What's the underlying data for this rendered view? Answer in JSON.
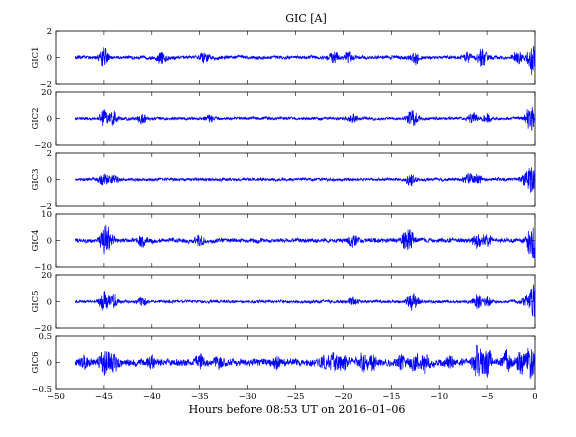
{
  "chart_data": {
    "type": "line",
    "title": "GIC [A]",
    "xlabel": "Hours before  08:53 UT on 2016–01–06",
    "xlim": [
      -50,
      0
    ],
    "xticks": [
      -50,
      -45,
      -40,
      -35,
      -30,
      -25,
      -20,
      -15,
      -10,
      -5,
      0
    ],
    "xtick_labels": [
      "−50",
      "−45",
      "−40",
      "−35",
      "−30",
      "−25",
      "−20",
      "−15",
      "−10",
      "−5",
      "0"
    ],
    "x_data_range": [
      -48,
      0
    ],
    "line_color": "#0000ff",
    "grid": false,
    "panels": [
      {
        "ylabel": "GIC1",
        "ylim": [
          -2,
          2
        ],
        "yticks": [
          -2,
          0,
          2
        ],
        "ytick_labels": [
          "−2",
          "0",
          "2"
        ],
        "noise_amplitude": 0.12,
        "bursts": [
          {
            "x": -45,
            "amp": 0.7
          },
          {
            "x": -39,
            "amp": 0.4
          },
          {
            "x": -34.5,
            "amp": 0.3
          },
          {
            "x": -21,
            "amp": 0.4
          },
          {
            "x": -19.5,
            "amp": 0.35
          },
          {
            "x": -12.5,
            "amp": 0.5
          },
          {
            "x": -7,
            "amp": 0.35
          },
          {
            "x": -5.5,
            "amp": 0.7
          },
          {
            "x": -1.8,
            "amp": 0.5
          },
          {
            "x": -0.3,
            "amp": 1.2
          }
        ]
      },
      {
        "ylabel": "GIC2",
        "ylim": [
          -20,
          20
        ],
        "yticks": [
          -20,
          0,
          20
        ],
        "ytick_labels": [
          "−20",
          "0",
          "20"
        ],
        "noise_amplitude": 1.0,
        "bursts": [
          {
            "x": -45,
            "amp": 6
          },
          {
            "x": -44,
            "amp": 5
          },
          {
            "x": -41,
            "amp": 3
          },
          {
            "x": -34,
            "amp": 2.5
          },
          {
            "x": -19,
            "amp": 3
          },
          {
            "x": -13,
            "amp": 4.5
          },
          {
            "x": -12.5,
            "amp": 3.5
          },
          {
            "x": -6.5,
            "amp": 4
          },
          {
            "x": -5,
            "amp": 3
          },
          {
            "x": -0.5,
            "amp": 10
          }
        ]
      },
      {
        "ylabel": "GIC3",
        "ylim": [
          -2,
          2
        ],
        "yticks": [
          -2,
          0,
          2
        ],
        "ytick_labels": [
          "−2",
          "0",
          "2"
        ],
        "noise_amplitude": 0.1,
        "bursts": [
          {
            "x": -45,
            "amp": 0.4
          },
          {
            "x": -44,
            "amp": 0.3
          },
          {
            "x": -13,
            "amp": 0.4
          },
          {
            "x": -7,
            "amp": 0.4
          },
          {
            "x": -6,
            "amp": 0.35
          },
          {
            "x": -1,
            "amp": 0.4
          },
          {
            "x": -0.3,
            "amp": 1.0
          }
        ]
      },
      {
        "ylabel": "GIC4",
        "ylim": [
          -10,
          10
        ],
        "yticks": [
          -10,
          0,
          10
        ],
        "ytick_labels": [
          "−10",
          "0",
          "10"
        ],
        "noise_amplitude": 0.7,
        "bursts": [
          {
            "x": -45,
            "amp": 4
          },
          {
            "x": -44.5,
            "amp": 3.5
          },
          {
            "x": -41,
            "amp": 2
          },
          {
            "x": -35,
            "amp": 1.6
          },
          {
            "x": -19,
            "amp": 2
          },
          {
            "x": -13.5,
            "amp": 3
          },
          {
            "x": -13,
            "amp": 2.5
          },
          {
            "x": -6,
            "amp": 2.5
          },
          {
            "x": -5,
            "amp": 2
          },
          {
            "x": -0.5,
            "amp": 3
          },
          {
            "x": -0.1,
            "amp": 8
          }
        ]
      },
      {
        "ylabel": "GIC5",
        "ylim": [
          -20,
          20
        ],
        "yticks": [
          -20,
          0,
          20
        ],
        "ytick_labels": [
          "−20",
          "0",
          "20"
        ],
        "noise_amplitude": 1.0,
        "bursts": [
          {
            "x": -45,
            "amp": 7
          },
          {
            "x": -44,
            "amp": 5
          },
          {
            "x": -41,
            "amp": 3
          },
          {
            "x": -19,
            "amp": 3
          },
          {
            "x": -13,
            "amp": 4.5
          },
          {
            "x": -12.5,
            "amp": 3.5
          },
          {
            "x": -6,
            "amp": 5
          },
          {
            "x": -5,
            "amp": 3.5
          },
          {
            "x": -1,
            "amp": 3
          },
          {
            "x": -0.2,
            "amp": 12
          }
        ]
      },
      {
        "ylabel": "GIC6",
        "ylim": [
          -0.5,
          0.5
        ],
        "yticks": [
          -0.5,
          0,
          0.5
        ],
        "ytick_labels": [
          "−0.5",
          "0",
          "0.5"
        ],
        "noise_amplitude": 0.06,
        "bursts": [
          {
            "x": -47,
            "amp": 0.08
          },
          {
            "x": -45,
            "amp": 0.25
          },
          {
            "x": -44,
            "amp": 0.15
          },
          {
            "x": -40,
            "amp": 0.08
          },
          {
            "x": -35,
            "amp": 0.1
          },
          {
            "x": -33,
            "amp": 0.08
          },
          {
            "x": -27,
            "amp": 0.08
          },
          {
            "x": -22,
            "amp": 0.1
          },
          {
            "x": -21,
            "amp": 0.15
          },
          {
            "x": -20,
            "amp": 0.12
          },
          {
            "x": -18,
            "amp": 0.15
          },
          {
            "x": -17,
            "amp": 0.12
          },
          {
            "x": -14,
            "amp": 0.1
          },
          {
            "x": -12.5,
            "amp": 0.12
          },
          {
            "x": -11.5,
            "amp": 0.15
          },
          {
            "x": -9,
            "amp": 0.08
          },
          {
            "x": -6,
            "amp": 0.3
          },
          {
            "x": -5,
            "amp": 0.25
          },
          {
            "x": -3,
            "amp": 0.15
          },
          {
            "x": -1.5,
            "amp": 0.2
          },
          {
            "x": -0.5,
            "amp": 0.3
          }
        ]
      }
    ]
  }
}
